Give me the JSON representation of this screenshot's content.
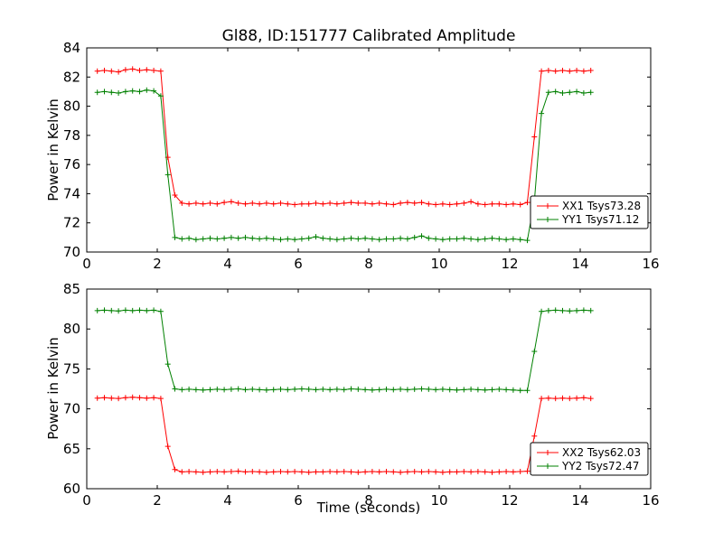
{
  "figure": {
    "background": "#ffffff"
  },
  "chart_data": [
    {
      "type": "line",
      "title": "Gl88, ID:151777 Calibrated Amplitude",
      "xlabel": "",
      "ylabel": "Power in Kelvin",
      "xlim": [
        0,
        16
      ],
      "ylim": [
        70,
        84
      ],
      "xticks": [
        0,
        2,
        4,
        6,
        8,
        10,
        12,
        14,
        16
      ],
      "yticks": [
        70,
        72,
        74,
        76,
        78,
        80,
        82,
        84
      ],
      "legend_position": "lower right",
      "x": [
        0.3,
        0.5,
        0.7,
        0.9,
        1.1,
        1.3,
        1.5,
        1.7,
        1.9,
        2.1,
        2.3,
        2.5,
        2.7,
        2.9,
        3.1,
        3.3,
        3.5,
        3.7,
        3.9,
        4.1,
        4.3,
        4.5,
        4.7,
        4.9,
        5.1,
        5.3,
        5.5,
        5.7,
        5.9,
        6.1,
        6.3,
        6.5,
        6.7,
        6.9,
        7.1,
        7.3,
        7.5,
        7.7,
        7.9,
        8.1,
        8.3,
        8.5,
        8.7,
        8.9,
        9.1,
        9.3,
        9.5,
        9.7,
        9.9,
        10.1,
        10.3,
        10.5,
        10.7,
        10.9,
        11.1,
        11.3,
        11.5,
        11.7,
        11.9,
        12.1,
        12.3,
        12.5,
        12.7,
        12.9,
        13.1,
        13.3,
        13.5,
        13.7,
        13.9,
        14.1,
        14.3
      ],
      "series": [
        {
          "name": "XX1 Tsys73.28",
          "color": "#ff0000",
          "y": [
            82.4,
            82.45,
            82.4,
            82.35,
            82.5,
            82.55,
            82.45,
            82.5,
            82.45,
            82.4,
            76.5,
            73.9,
            73.35,
            73.3,
            73.35,
            73.3,
            73.35,
            73.3,
            73.4,
            73.45,
            73.35,
            73.3,
            73.35,
            73.3,
            73.35,
            73.3,
            73.35,
            73.3,
            73.25,
            73.3,
            73.3,
            73.35,
            73.3,
            73.35,
            73.3,
            73.35,
            73.4,
            73.35,
            73.35,
            73.3,
            73.35,
            73.3,
            73.25,
            73.35,
            73.4,
            73.35,
            73.4,
            73.3,
            73.25,
            73.3,
            73.25,
            73.3,
            73.35,
            73.45,
            73.3,
            73.25,
            73.3,
            73.3,
            73.25,
            73.3,
            73.25,
            73.4,
            77.9,
            82.4,
            82.45,
            82.4,
            82.45,
            82.4,
            82.45,
            82.4,
            82.45
          ]
        },
        {
          "name": "YY1 Tsys71.12",
          "color": "#008000",
          "y": [
            80.95,
            81.0,
            80.95,
            80.9,
            81.0,
            81.05,
            81.0,
            81.1,
            81.05,
            80.7,
            75.3,
            71.0,
            70.9,
            70.95,
            70.85,
            70.9,
            70.95,
            70.9,
            70.95,
            71.0,
            70.95,
            71.0,
            70.95,
            70.9,
            70.95,
            70.9,
            70.85,
            70.9,
            70.85,
            70.9,
            70.95,
            71.05,
            70.95,
            70.9,
            70.85,
            70.9,
            70.95,
            70.9,
            70.95,
            70.9,
            70.85,
            70.9,
            70.9,
            70.95,
            70.9,
            71.0,
            71.1,
            70.95,
            70.9,
            70.85,
            70.9,
            70.9,
            70.95,
            70.9,
            70.85,
            70.9,
            70.95,
            70.9,
            70.85,
            70.9,
            70.85,
            70.8,
            73.5,
            79.5,
            80.95,
            81.0,
            80.9,
            80.95,
            81.0,
            80.9,
            80.95
          ]
        }
      ]
    },
    {
      "type": "line",
      "title": "",
      "xlabel": "Time (seconds)",
      "ylabel": "Power in Kelvin",
      "xlim": [
        0,
        16
      ],
      "ylim": [
        60,
        85
      ],
      "xticks": [
        0,
        2,
        4,
        6,
        8,
        10,
        12,
        14,
        16
      ],
      "yticks": [
        60,
        65,
        70,
        75,
        80,
        85
      ],
      "legend_position": "lower right",
      "x": [
        0.3,
        0.5,
        0.7,
        0.9,
        1.1,
        1.3,
        1.5,
        1.7,
        1.9,
        2.1,
        2.3,
        2.5,
        2.7,
        2.9,
        3.1,
        3.3,
        3.5,
        3.7,
        3.9,
        4.1,
        4.3,
        4.5,
        4.7,
        4.9,
        5.1,
        5.3,
        5.5,
        5.7,
        5.9,
        6.1,
        6.3,
        6.5,
        6.7,
        6.9,
        7.1,
        7.3,
        7.5,
        7.7,
        7.9,
        8.1,
        8.3,
        8.5,
        8.7,
        8.9,
        9.1,
        9.3,
        9.5,
        9.7,
        9.9,
        10.1,
        10.3,
        10.5,
        10.7,
        10.9,
        11.1,
        11.3,
        11.5,
        11.7,
        11.9,
        12.1,
        12.3,
        12.5,
        12.7,
        12.9,
        13.1,
        13.3,
        13.5,
        13.7,
        13.9,
        14.1,
        14.3
      ],
      "series": [
        {
          "name": "XX2 Tsys62.03",
          "color": "#ff0000",
          "y": [
            71.35,
            71.4,
            71.35,
            71.3,
            71.4,
            71.45,
            71.4,
            71.35,
            71.4,
            71.3,
            65.3,
            62.4,
            62.1,
            62.15,
            62.1,
            62.05,
            62.1,
            62.15,
            62.1,
            62.15,
            62.2,
            62.1,
            62.15,
            62.1,
            62.05,
            62.1,
            62.15,
            62.1,
            62.15,
            62.1,
            62.05,
            62.1,
            62.1,
            62.15,
            62.1,
            62.15,
            62.1,
            62.05,
            62.1,
            62.15,
            62.1,
            62.15,
            62.1,
            62.05,
            62.1,
            62.15,
            62.1,
            62.15,
            62.1,
            62.05,
            62.1,
            62.1,
            62.15,
            62.1,
            62.15,
            62.1,
            62.05,
            62.1,
            62.15,
            62.1,
            62.15,
            62.2,
            66.6,
            71.3,
            71.35,
            71.3,
            71.35,
            71.3,
            71.35,
            71.4,
            71.3
          ]
        },
        {
          "name": "YY2 Tsys72.47",
          "color": "#008000",
          "y": [
            82.3,
            82.35,
            82.3,
            82.25,
            82.35,
            82.3,
            82.35,
            82.3,
            82.35,
            82.2,
            75.6,
            72.5,
            72.4,
            72.45,
            72.4,
            72.35,
            72.4,
            72.45,
            72.4,
            72.45,
            72.5,
            72.4,
            72.45,
            72.4,
            72.35,
            72.4,
            72.45,
            72.4,
            72.45,
            72.5,
            72.45,
            72.4,
            72.45,
            72.4,
            72.45,
            72.4,
            72.5,
            72.45,
            72.4,
            72.35,
            72.4,
            72.45,
            72.4,
            72.45,
            72.4,
            72.45,
            72.5,
            72.45,
            72.4,
            72.45,
            72.4,
            72.35,
            72.4,
            72.45,
            72.4,
            72.35,
            72.4,
            72.45,
            72.4,
            72.35,
            72.3,
            72.3,
            77.2,
            82.2,
            82.3,
            82.35,
            82.3,
            82.25,
            82.3,
            82.35,
            82.3
          ]
        }
      ]
    }
  ]
}
